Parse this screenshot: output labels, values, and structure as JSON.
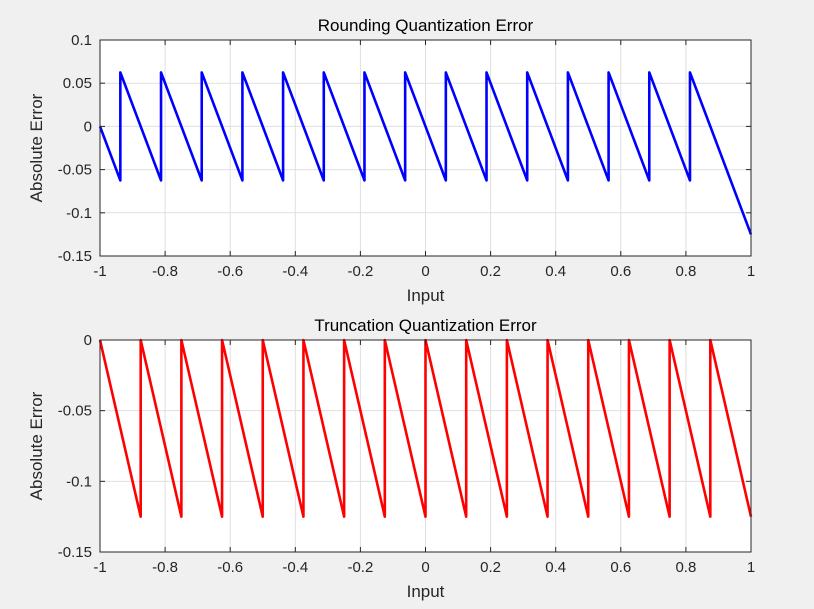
{
  "chart_data": [
    {
      "type": "line",
      "title": "Rounding Quantization Error",
      "xlabel": "Input",
      "ylabel": "Absolute Error",
      "xlim": [
        -1,
        1
      ],
      "ylim": [
        -0.15,
        0.1
      ],
      "xticks": [
        -1,
        -0.8,
        -0.6,
        -0.4,
        -0.2,
        0,
        0.2,
        0.4,
        0.6,
        0.8,
        1
      ],
      "xtick_labels": [
        "-1",
        "-0.8",
        "-0.6",
        "-0.4",
        "-0.2",
        "0",
        "0.2",
        "0.4",
        "0.6",
        "0.8",
        "1"
      ],
      "yticks": [
        -0.15,
        -0.1,
        -0.05,
        0,
        0.05,
        0.1
      ],
      "ytick_labels": [
        "-0.15",
        "-0.1",
        "-0.05",
        "0",
        "0.05",
        "0.1"
      ],
      "grid": true,
      "series": [
        {
          "color": "#0000ff",
          "x": [
            -1,
            -0.9375,
            -0.9375,
            -0.8125,
            -0.8125,
            -0.6875,
            -0.6875,
            -0.5625,
            -0.5625,
            -0.4375,
            -0.4375,
            -0.3125,
            -0.3125,
            -0.1875,
            -0.1875,
            -0.0625,
            -0.0625,
            0.0625,
            0.0625,
            0.1875,
            0.1875,
            0.3125,
            0.3125,
            0.4375,
            0.4375,
            0.5625,
            0.5625,
            0.6875,
            0.6875,
            0.8125,
            0.8125,
            1
          ],
          "y": [
            0,
            -0.0625,
            0.0625,
            -0.0625,
            0.0625,
            -0.0625,
            0.0625,
            -0.0625,
            0.0625,
            -0.0625,
            0.0625,
            -0.0625,
            0.0625,
            -0.0625,
            0.0625,
            -0.0625,
            0.0625,
            -0.0625,
            0.0625,
            -0.0625,
            0.0625,
            -0.0625,
            0.0625,
            -0.0625,
            0.0625,
            -0.0625,
            0.0625,
            -0.0625,
            0.0625,
            -0.0625,
            0.0625,
            -0.125
          ]
        }
      ]
    },
    {
      "type": "line",
      "title": "Truncation Quantization Error",
      "xlabel": "Input",
      "ylabel": "Absolute Error",
      "xlim": [
        -1,
        1
      ],
      "ylim": [
        -0.15,
        0
      ],
      "xticks": [
        -1,
        -0.8,
        -0.6,
        -0.4,
        -0.2,
        0,
        0.2,
        0.4,
        0.6,
        0.8,
        1
      ],
      "xtick_labels": [
        "-1",
        "-0.8",
        "-0.6",
        "-0.4",
        "-0.2",
        "0",
        "0.2",
        "0.4",
        "0.6",
        "0.8",
        "1"
      ],
      "yticks": [
        -0.15,
        -0.1,
        -0.05,
        0
      ],
      "ytick_labels": [
        "-0.15",
        "-0.1",
        "-0.05",
        "0"
      ],
      "grid": true,
      "series": [
        {
          "color": "#ff0000",
          "x": [
            -1,
            -0.875,
            -0.875,
            -0.75,
            -0.75,
            -0.625,
            -0.625,
            -0.5,
            -0.5,
            -0.375,
            -0.375,
            -0.25,
            -0.25,
            -0.125,
            -0.125,
            0,
            0,
            0.125,
            0.125,
            0.25,
            0.25,
            0.375,
            0.375,
            0.5,
            0.5,
            0.625,
            0.625,
            0.75,
            0.75,
            0.875,
            0.875,
            1
          ],
          "y": [
            0,
            -0.125,
            0,
            -0.125,
            0,
            -0.125,
            0,
            -0.125,
            0,
            -0.125,
            0,
            -0.125,
            0,
            -0.125,
            0,
            -0.125,
            0,
            -0.125,
            0,
            -0.125,
            0,
            -0.125,
            0,
            -0.125,
            0,
            -0.125,
            0,
            -0.125,
            0,
            -0.125,
            0,
            -0.125
          ]
        }
      ]
    }
  ]
}
